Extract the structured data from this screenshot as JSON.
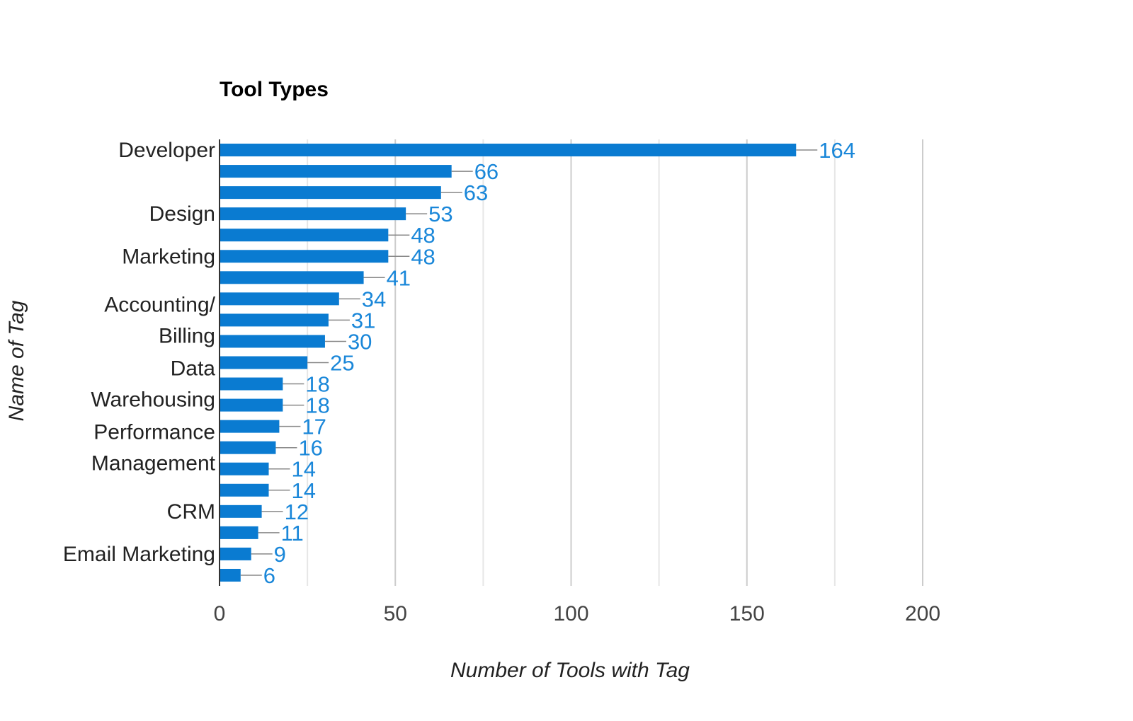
{
  "chart_data": {
    "type": "bar",
    "orientation": "horizontal",
    "title": "Tool Types",
    "xlabel": "Number of Tools with Tag",
    "ylabel": "Name of Tag",
    "xlim": [
      0,
      200
    ],
    "x_ticks": [
      0,
      50,
      100,
      150,
      200
    ],
    "x_ticks_labels": [
      "0",
      "50",
      "100",
      "150",
      "200"
    ],
    "grid": "vertical",
    "legend": "none",
    "category_labels": [
      {
        "lines": [
          "Developer"
        ],
        "bar_index": 0
      },
      {
        "lines": [
          "Design"
        ],
        "bar_index": 3
      },
      {
        "lines": [
          "Marketing"
        ],
        "bar_index": 5
      },
      {
        "lines": [
          "Accounting/",
          "Billing"
        ],
        "bar_index": 8
      },
      {
        "lines": [
          "Data",
          "Warehousing"
        ],
        "bar_index": 11
      },
      {
        "lines": [
          "Performance",
          "Management"
        ],
        "bar_index": 14
      },
      {
        "lines": [
          "CRM"
        ],
        "bar_index": 17
      },
      {
        "lines": [
          "Email Marketing"
        ],
        "bar_index": 19
      }
    ],
    "values": [
      164,
      66,
      63,
      53,
      48,
      48,
      41,
      34,
      31,
      30,
      25,
      18,
      18,
      17,
      16,
      14,
      14,
      12,
      11,
      9,
      6
    ],
    "value_labels": [
      "164",
      "66",
      "63",
      "53",
      "48",
      "48",
      "41",
      "34",
      "31",
      "30",
      "25",
      "18",
      "18",
      "17",
      "16",
      "14",
      "14",
      "12",
      "11",
      "9",
      "6"
    ]
  },
  "colors": {
    "bar": "#0a7bd1",
    "value_label": "#1a87d9",
    "leader_line": "#888888",
    "gridline_major": "#cccccc",
    "gridline_minor": "#e6e6e6",
    "axis": "#333333"
  }
}
